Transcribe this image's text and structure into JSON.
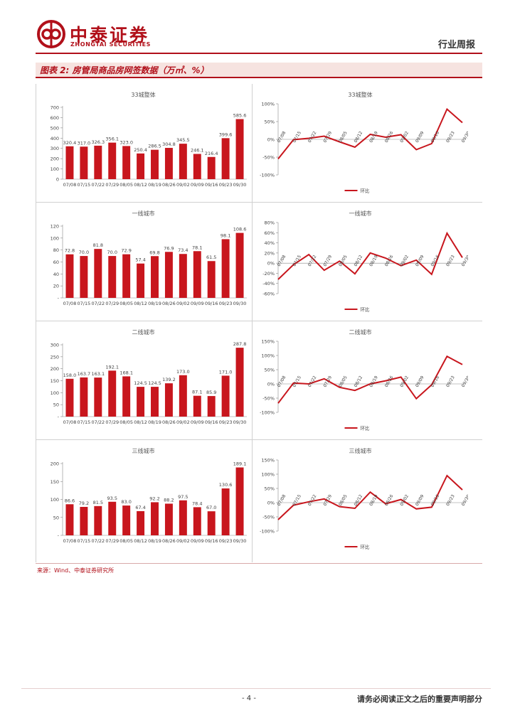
{
  "header": {
    "logo_cn": "中泰证券",
    "logo_en": "ZHONGTAI SECURITIES",
    "report_type": "行业周报"
  },
  "figure": {
    "title": "图表 2:  房管局商品房网签数据（万㎡、%）",
    "source": "来源：Wind、中泰证券研究所"
  },
  "footer": {
    "page_number": "- 4 -",
    "disclaimer": "请务必阅读正文之后的重要声明部分"
  },
  "colors": {
    "brand": "#b1101a",
    "bar": "#c8161d",
    "line": "#c8161d"
  },
  "chart_data": [
    {
      "type": "bar",
      "title": "33城整体",
      "categories": [
        "07/08",
        "07/15",
        "07/22",
        "07/29",
        "08/05",
        "08/12",
        "08/19",
        "08/26",
        "09/02",
        "09/09",
        "09/16",
        "09/23",
        "09/30"
      ],
      "values": [
        320.4,
        317.0,
        326.3,
        356.1,
        323.0,
        250.4,
        286.5,
        304.8,
        345.5,
        246.1,
        216.4,
        399.6,
        585.6
      ],
      "value_labels": [
        "320.4",
        "317.0",
        "326.3",
        "356.1",
        "323.0",
        "250.4",
        "286.5",
        "304.8",
        "345.5",
        "246.1",
        "216.4",
        "399.6",
        "585.6"
      ],
      "ylim": [
        0,
        700
      ],
      "yticks": [
        "0",
        "100",
        "200",
        "300",
        "400",
        "500",
        "600",
        "700"
      ]
    },
    {
      "type": "line",
      "title": "33城整体",
      "categories": [
        "07/08",
        "07/15",
        "07/22",
        "07/29",
        "08/05",
        "08/12",
        "08/19",
        "08/26",
        "09/02",
        "09/09",
        "09/16",
        "09/23",
        "09/30"
      ],
      "values": [
        -55,
        -1,
        3,
        9,
        -7,
        -22,
        14,
        6,
        13,
        -29,
        -12,
        85,
        47
      ],
      "legend": "环比",
      "ylim": [
        -100,
        100
      ],
      "yticks": [
        "-100%",
        "-50%",
        "0%",
        "50%",
        "100%"
      ]
    },
    {
      "type": "bar",
      "title": "一线城市",
      "categories": [
        "07/08",
        "07/15",
        "07/22",
        "07/29",
        "08/05",
        "08/12",
        "08/19",
        "08/26",
        "09/02",
        "09/09",
        "09/16",
        "09/23",
        "09/30"
      ],
      "values": [
        72.8,
        70.0,
        81.8,
        70.0,
        72.9,
        57.4,
        69.8,
        76.9,
        73.4,
        78.1,
        61.5,
        98.1,
        108.6
      ],
      "value_labels": [
        "72.8",
        "70.0",
        "81.8",
        "70.0",
        "72.9",
        "57.4",
        "69.8",
        "76.9",
        "73.4",
        "78.1",
        "61.5",
        "98.1",
        "108.6"
      ],
      "ylim": [
        0,
        120
      ],
      "yticks": [
        "-",
        "20",
        "40",
        "60",
        "80",
        "100",
        "120"
      ]
    },
    {
      "type": "line",
      "title": "一线城市",
      "categories": [
        "07/08",
        "07/15",
        "07/22",
        "07/29",
        "08/05",
        "08/12",
        "08/19",
        "08/26",
        "09/02",
        "09/09",
        "09/16",
        "09/23",
        "09/30"
      ],
      "values": [
        -32,
        -3,
        17,
        -14,
        4,
        -21,
        20,
        10,
        -5,
        6,
        -22,
        59,
        11
      ],
      "legend": "环比",
      "ylim": [
        -60,
        80
      ],
      "yticks": [
        "-60%",
        "-40%",
        "-20%",
        "0%",
        "20%",
        "40%",
        "60%",
        "80%"
      ]
    },
    {
      "type": "bar",
      "title": "二线城市",
      "categories": [
        "07/08",
        "07/15",
        "07/22",
        "07/29",
        "08/05",
        "08/12",
        "08/19",
        "08/26",
        "09/02",
        "09/09",
        "09/16",
        "09/23",
        "09/30"
      ],
      "values": [
        158.0,
        163.7,
        163.1,
        192.1,
        168.1,
        124.5,
        124.5,
        139.2,
        173.0,
        87.1,
        85.9,
        171.0,
        287.8
      ],
      "value_labels": [
        "158.0",
        "163.7",
        "163.1",
        "192.1",
        "168.1",
        "124.5",
        "124.5",
        "139.2",
        "173.0",
        "87.1",
        "85.9",
        "171.0",
        "287.8"
      ],
      "ylim": [
        0,
        300
      ],
      "yticks": [
        "-",
        "50",
        "100",
        "150",
        "200",
        "250",
        "300"
      ]
    },
    {
      "type": "line",
      "title": "二线城市",
      "categories": [
        "07/08",
        "07/15",
        "07/22",
        "07/29",
        "08/05",
        "08/12",
        "08/19",
        "08/26",
        "09/02",
        "09/09",
        "09/16",
        "09/23",
        "09/30"
      ],
      "values": [
        -68,
        3,
        0,
        18,
        -12,
        -23,
        0,
        11,
        24,
        -52,
        -3,
        97,
        68
      ],
      "legend": "环比",
      "ylim": [
        -100,
        150
      ],
      "yticks": [
        "-100%",
        "-50%",
        "0%",
        "50%",
        "100%",
        "150%"
      ]
    },
    {
      "type": "bar",
      "title": "三线城市",
      "categories": [
        "07/08",
        "07/15",
        "07/22",
        "07/29",
        "08/05",
        "08/12",
        "08/19",
        "08/26",
        "09/02",
        "09/09",
        "09/16",
        "09/23",
        "09/30"
      ],
      "values": [
        86.6,
        79.2,
        81.5,
        93.5,
        83.0,
        67.4,
        92.2,
        88.2,
        97.5,
        78.4,
        67.0,
        130.6,
        189.1
      ],
      "value_labels": [
        "86.6",
        "79.2",
        "81.5",
        "93.5",
        "83.0",
        "67.4",
        "92.2",
        "88.2",
        "97.5",
        "78.4",
        "67.0",
        "130.6",
        "189.1"
      ],
      "ylim": [
        0,
        200
      ],
      "yticks": [
        "-",
        "50",
        "100",
        "150",
        "200"
      ]
    },
    {
      "type": "line",
      "title": "三线城市",
      "categories": [
        "07/08",
        "07/15",
        "07/22",
        "07/29",
        "08/05",
        "08/12",
        "08/19",
        "08/26",
        "09/02",
        "09/09",
        "09/16",
        "09/23",
        "09/30"
      ],
      "values": [
        -60,
        -9,
        3,
        13,
        -14,
        -20,
        37,
        -4,
        11,
        -22,
        -16,
        95,
        45
      ],
      "legend": "环比",
      "ylim": [
        -100,
        150
      ],
      "yticks": [
        "-100%",
        "-50%",
        "0%",
        "50%",
        "100%",
        "150%"
      ]
    }
  ]
}
